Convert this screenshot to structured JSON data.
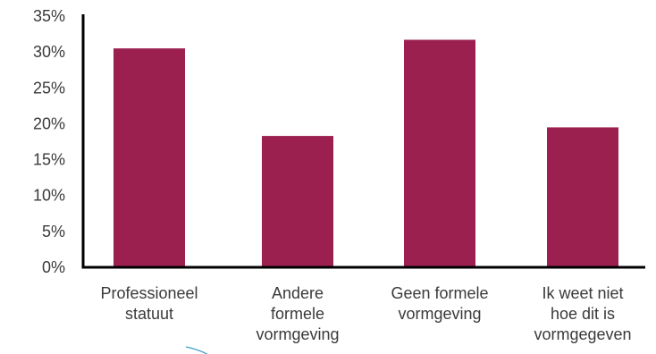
{
  "chart_data": {
    "type": "bar",
    "categories": [
      [
        "Professioneel",
        "statuut"
      ],
      [
        "Andere",
        "formele",
        "vormgeving"
      ],
      [
        "Geen formele",
        "vormgeving"
      ],
      [
        "Ik weet niet",
        "hoe dit is",
        "vormgegeven"
      ]
    ],
    "values": [
      30.5,
      18.3,
      31.7,
      19.5
    ],
    "ylim": [
      0,
      35
    ],
    "ytick_step": 5,
    "ytick_labels": [
      "0%",
      "5%",
      "10%",
      "15%",
      "20%",
      "25%",
      "30%",
      "35%"
    ],
    "title": "",
    "xlabel": "",
    "ylabel": "",
    "grid": false,
    "legend": "none",
    "bar_color": "#9b2050",
    "axis_color": "#000000",
    "annotation_color": "#3a9fc2"
  }
}
